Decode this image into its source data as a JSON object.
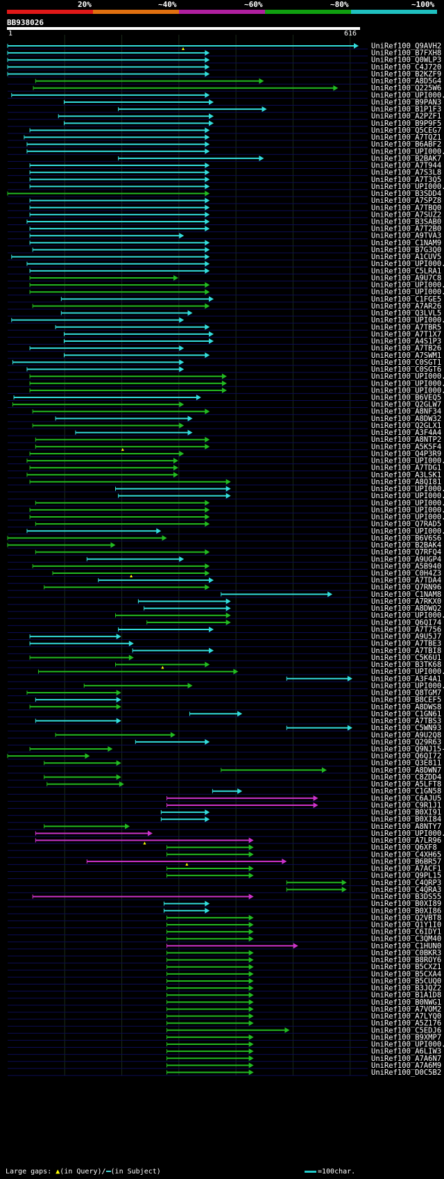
{
  "header": {
    "percent_labels": [
      "20%",
      "~40%",
      "~60%",
      "~80%",
      "~100%"
    ],
    "band_colors": [
      "#e01818",
      "#e07010",
      "#b020a0",
      "#10a010",
      "#20c0c0"
    ]
  },
  "query": {
    "id": "BB938026",
    "start": "1",
    "end": "616",
    "length": 616
  },
  "legend": {
    "large_gaps": "Large gaps:",
    "in_query": "(in Query)/",
    "in_subject": "(in Subject)",
    "scale": "=100char."
  },
  "colors": {
    "cyan": "#33dddd",
    "green": "#22bb22",
    "magenta": "#cc33cc",
    "grid": "#1a2a1a",
    "rowline": "#0c0c55"
  },
  "hits": [
    {
      "name": "UniRef100_Q9AVH2",
      "band": "cyan",
      "start": 1,
      "end": 616,
      "tri": true
    },
    {
      "name": "UniRef100_B7FXH8",
      "band": "cyan",
      "start": 1,
      "end": 355
    },
    {
      "name": "UniRef100_Q0WLP3",
      "band": "cyan",
      "start": 1,
      "end": 355
    },
    {
      "name": "UniRef100_C4J720",
      "band": "cyan",
      "start": 1,
      "end": 355
    },
    {
      "name": "UniRef100_B2KZF9",
      "band": "cyan",
      "start": 1,
      "end": 355
    },
    {
      "name": "UniRef100_A8D5G4",
      "band": "green",
      "start": 50,
      "end": 450
    },
    {
      "name": "UniRef100_Q225W6",
      "band": "green",
      "start": 46,
      "end": 580
    },
    {
      "name": "UniRef100_UPI000...",
      "band": "cyan",
      "start": 8,
      "end": 355
    },
    {
      "name": "UniRef100_B9PAN3",
      "band": "cyan",
      "start": 100,
      "end": 362
    },
    {
      "name": "UniRef100_B1P1F3",
      "band": "cyan",
      "start": 195,
      "end": 455
    },
    {
      "name": "UniRef100_A2PZF1",
      "band": "cyan",
      "start": 90,
      "end": 362
    },
    {
      "name": "UniRef100_B9P9F5",
      "band": "cyan",
      "start": 100,
      "end": 362
    },
    {
      "name": "UniRef100_Q5CEG7",
      "band": "cyan",
      "start": 40,
      "end": 355
    },
    {
      "name": "UniRef100_A7TQZ1",
      "band": "cyan",
      "start": 30,
      "end": 355
    },
    {
      "name": "UniRef100_B6ABF2",
      "band": "cyan",
      "start": 35,
      "end": 355
    },
    {
      "name": "UniRef100_UPI000...",
      "band": "cyan",
      "start": 35,
      "end": 355
    },
    {
      "name": "UniRef100_B2BAK7",
      "band": "cyan",
      "start": 195,
      "end": 450
    },
    {
      "name": "UniRef100_A7T944",
      "band": "cyan",
      "start": 40,
      "end": 355
    },
    {
      "name": "UniRef100_A7S3L8",
      "band": "cyan",
      "start": 40,
      "end": 355
    },
    {
      "name": "UniRef100_A7T3Q5",
      "band": "cyan",
      "start": 40,
      "end": 355
    },
    {
      "name": "UniRef100_UPI000...",
      "band": "cyan",
      "start": 40,
      "end": 355
    },
    {
      "name": "UniRef100_B3SDD4",
      "band": "green",
      "start": 1,
      "end": 355
    },
    {
      "name": "UniRef100_A7SPZ8",
      "band": "cyan",
      "start": 40,
      "end": 355
    },
    {
      "name": "UniRef100_A7TBQ0",
      "band": "cyan",
      "start": 40,
      "end": 355
    },
    {
      "name": "UniRef100_A7SUZ2",
      "band": "cyan",
      "start": 40,
      "end": 355
    },
    {
      "name": "UniRef100_B3SAB0",
      "band": "cyan",
      "start": 35,
      "end": 355
    },
    {
      "name": "UniRef100_A7T2B0",
      "band": "cyan",
      "start": 40,
      "end": 355
    },
    {
      "name": "UniRef100_A9TVA3",
      "band": "cyan",
      "start": 40,
      "end": 310
    },
    {
      "name": "UniRef100_C1NAM9",
      "band": "cyan",
      "start": 40,
      "end": 355
    },
    {
      "name": "UniRef100_B7G3Q0",
      "band": "cyan",
      "start": 45,
      "end": 355
    },
    {
      "name": "UniRef100_A1CUV5",
      "band": "cyan",
      "start": 8,
      "end": 355
    },
    {
      "name": "UniRef100_UPI000...",
      "band": "cyan",
      "start": 35,
      "end": 355
    },
    {
      "name": "UniRef100_C5LRA1",
      "band": "cyan",
      "start": 40,
      "end": 355
    },
    {
      "name": "UniRef100_A9U7C8",
      "band": "green",
      "start": 40,
      "end": 300
    },
    {
      "name": "UniRef100_UPI000...",
      "band": "green",
      "start": 40,
      "end": 355
    },
    {
      "name": "UniRef100_UPI000...",
      "band": "green",
      "start": 40,
      "end": 355
    },
    {
      "name": "UniRef100_C1FGE5",
      "band": "cyan",
      "start": 95,
      "end": 362
    },
    {
      "name": "UniRef100_A7AR26",
      "band": "green",
      "start": 45,
      "end": 355
    },
    {
      "name": "UniRef100_Q3LVL5",
      "band": "cyan",
      "start": 95,
      "end": 325
    },
    {
      "name": "UniRef100_UPI000...",
      "band": "cyan",
      "start": 8,
      "end": 310
    },
    {
      "name": "UniRef100_A7TBR5",
      "band": "cyan",
      "start": 85,
      "end": 355
    },
    {
      "name": "UniRef100_A7T1X7",
      "band": "cyan",
      "start": 100,
      "end": 362
    },
    {
      "name": "UniRef100_A4S1P3",
      "band": "cyan",
      "start": 100,
      "end": 362
    },
    {
      "name": "UniRef100_A7TB26",
      "band": "cyan",
      "start": 40,
      "end": 310
    },
    {
      "name": "UniRef100_A7SWM1",
      "band": "cyan",
      "start": 100,
      "end": 355
    },
    {
      "name": "UniRef100_C0SGT1",
      "band": "cyan",
      "start": 10,
      "end": 310
    },
    {
      "name": "UniRef100_C0SGT6",
      "band": "cyan",
      "start": 35,
      "end": 310
    },
    {
      "name": "UniRef100_UPI000...",
      "band": "green",
      "start": 40,
      "end": 385
    },
    {
      "name": "UniRef100_UPI000...",
      "band": "green",
      "start": 40,
      "end": 385
    },
    {
      "name": "UniRef100_UPI000...",
      "band": "green",
      "start": 40,
      "end": 385
    },
    {
      "name": "UniRef100_B6VEQ5",
      "band": "cyan",
      "start": 12,
      "end": 340
    },
    {
      "name": "UniRef100_Q2GLW7",
      "band": "green",
      "start": 10,
      "end": 310
    },
    {
      "name": "UniRef100_A8NF34",
      "band": "green",
      "start": 45,
      "end": 355
    },
    {
      "name": "UniRef100_A8DW32",
      "band": "cyan",
      "start": 85,
      "end": 325
    },
    {
      "name": "UniRef100_Q2GLX1",
      "band": "green",
      "start": 45,
      "end": 310
    },
    {
      "name": "UniRef100_A3F4A4",
      "band": "cyan",
      "start": 120,
      "end": 325
    },
    {
      "name": "UniRef100_A8NTP2",
      "band": "green",
      "start": 50,
      "end": 355
    },
    {
      "name": "UniRef100_A5K5F4",
      "band": "green",
      "start": 50,
      "end": 355,
      "tri": true
    },
    {
      "name": "UniRef100_Q4P3R9",
      "band": "green",
      "start": 40,
      "end": 310
    },
    {
      "name": "UniRef100_UPI000...",
      "band": "green",
      "start": 35,
      "end": 300
    },
    {
      "name": "UniRef100_A7TDG1",
      "band": "green",
      "start": 40,
      "end": 300
    },
    {
      "name": "UniRef100_A3LSK1",
      "band": "green",
      "start": 35,
      "end": 300
    },
    {
      "name": "UniRef100_A8QI81",
      "band": "green",
      "start": 40,
      "end": 392
    },
    {
      "name": "UniRef100_UPI000...",
      "band": "cyan",
      "start": 190,
      "end": 392
    },
    {
      "name": "UniRef100_UPI000...",
      "band": "cyan",
      "start": 195,
      "end": 392
    },
    {
      "name": "UniRef100_UPI000...",
      "band": "green",
      "start": 50,
      "end": 355
    },
    {
      "name": "UniRef100_UPI000...",
      "band": "green",
      "start": 40,
      "end": 355
    },
    {
      "name": "UniRef100_UPI000...",
      "band": "green",
      "start": 40,
      "end": 355
    },
    {
      "name": "UniRef100_Q7RAD5",
      "band": "green",
      "start": 50,
      "end": 355
    },
    {
      "name": "UniRef100_UPI000...",
      "band": "cyan",
      "start": 35,
      "end": 270
    },
    {
      "name": "UniRef100_B6V6S6",
      "band": "green",
      "start": 1,
      "end": 280
    },
    {
      "name": "UniRef100_B2BAK4",
      "band": "green",
      "start": 1,
      "end": 190
    },
    {
      "name": "UniRef100_Q7RFQ4",
      "band": "green",
      "start": 50,
      "end": 355
    },
    {
      "name": "UniRef100_A9UGP4",
      "band": "cyan",
      "start": 140,
      "end": 310
    },
    {
      "name": "UniRef100_A5B940",
      "band": "green",
      "start": 45,
      "end": 355
    },
    {
      "name": "UniRef100_C0H4Z3",
      "band": "green",
      "start": 80,
      "end": 355,
      "tri": true
    },
    {
      "name": "UniRef100_A7TDA4",
      "band": "cyan",
      "start": 160,
      "end": 362
    },
    {
      "name": "UniRef100_Q7RN96",
      "band": "green",
      "start": 65,
      "end": 355
    },
    {
      "name": "UniRef100_C1NAM8",
      "band": "cyan",
      "start": 375,
      "end": 570
    },
    {
      "name": "UniRef100_A7RKX0",
      "band": "cyan",
      "start": 230,
      "end": 392
    },
    {
      "name": "UniRef100_A8DWQ2",
      "band": "cyan",
      "start": 240,
      "end": 392
    },
    {
      "name": "UniRef100_UPI000...",
      "band": "green",
      "start": 190,
      "end": 392
    },
    {
      "name": "UniRef100_Q6QI74",
      "band": "green",
      "start": 245,
      "end": 392
    },
    {
      "name": "UniRef100_A7T756",
      "band": "cyan",
      "start": 195,
      "end": 362
    },
    {
      "name": "UniRef100_A9U5J7",
      "band": "cyan",
      "start": 40,
      "end": 200
    },
    {
      "name": "UniRef100_A7TBE3",
      "band": "cyan",
      "start": 40,
      "end": 222
    },
    {
      "name": "UniRef100_A7TBI8",
      "band": "cyan",
      "start": 220,
      "end": 362
    },
    {
      "name": "UniRef100_C5K6U1",
      "band": "green",
      "start": 40,
      "end": 222
    },
    {
      "name": "UniRef100_B3TK68",
      "band": "green",
      "start": 190,
      "end": 355,
      "tri": true
    },
    {
      "name": "UniRef100_UPI000...",
      "band": "green",
      "start": 55,
      "end": 405
    },
    {
      "name": "UniRef100_A3F4A1",
      "band": "cyan",
      "start": 490,
      "end": 605
    },
    {
      "name": "UniRef100_UPI000...",
      "band": "green",
      "start": 135,
      "end": 325
    },
    {
      "name": "UniRef100_Q8TGM7",
      "band": "green",
      "start": 35,
      "end": 200
    },
    {
      "name": "UniRef100_B8CEF5",
      "band": "cyan",
      "start": 50,
      "end": 200
    },
    {
      "name": "UniRef100_A8DWS8",
      "band": "green",
      "start": 40,
      "end": 200
    },
    {
      "name": "UniRef100_C1GN61",
      "band": "cyan",
      "start": 320,
      "end": 412
    },
    {
      "name": "UniRef100_A7TBS3",
      "band": "cyan",
      "start": 50,
      "end": 200
    },
    {
      "name": "UniRef100_C5WN93",
      "band": "cyan",
      "start": 490,
      "end": 605
    },
    {
      "name": "UniRef100_A9U2Q8",
      "band": "green",
      "start": 85,
      "end": 295
    },
    {
      "name": "UniRef100_Q29R63",
      "band": "cyan",
      "start": 225,
      "end": 355
    },
    {
      "name": "UniRef100_Q9NJ15-3",
      "band": "green",
      "start": 40,
      "end": 185
    },
    {
      "name": "UniRef100_Q6QI72",
      "band": "green",
      "start": 1,
      "end": 145
    },
    {
      "name": "UniRef100_Q3E811",
      "band": "green",
      "start": 65,
      "end": 200
    },
    {
      "name": "UniRef100_A8DWN7",
      "band": "green",
      "start": 375,
      "end": 560
    },
    {
      "name": "UniRef100_C8ZDD4",
      "band": "green",
      "start": 65,
      "end": 200
    },
    {
      "name": "UniRef100_A5LFT8",
      "band": "green",
      "start": 70,
      "end": 205
    },
    {
      "name": "UniRef100_C1GN58",
      "band": "cyan",
      "start": 360,
      "end": 412
    },
    {
      "name": "UniRef100_C6AJU5",
      "band": "magenta",
      "start": 280,
      "end": 545
    },
    {
      "name": "UniRef100_C9R1J1",
      "band": "magenta",
      "start": 280,
      "end": 545
    },
    {
      "name": "UniRef100_B0XI91",
      "band": "cyan",
      "start": 270,
      "end": 355
    },
    {
      "name": "UniRef100_B0XI84",
      "band": "cyan",
      "start": 270,
      "end": 355
    },
    {
      "name": "UniRef100_A8NTY7",
      "band": "green",
      "start": 65,
      "end": 215
    },
    {
      "name": "UniRef100_UPI000...",
      "band": "magenta",
      "start": 50,
      "end": 255
    },
    {
      "name": "UniRef100_A7LR96",
      "band": "magenta",
      "start": 50,
      "end": 432,
      "tri": true
    },
    {
      "name": "UniRef100_Q6XF8",
      "band": "green",
      "start": 280,
      "end": 432
    },
    {
      "name": "UniRef100_C4XH65",
      "band": "green",
      "start": 280,
      "end": 432
    },
    {
      "name": "UniRef100_B6BR57",
      "band": "magenta",
      "start": 140,
      "end": 490,
      "tri": true
    },
    {
      "name": "UniRef100_A7ACF1",
      "band": "green",
      "start": 280,
      "end": 432
    },
    {
      "name": "UniRef100_Q9PL15",
      "band": "green",
      "start": 280,
      "end": 432
    },
    {
      "name": "UniRef100_C4QRP3",
      "band": "green",
      "start": 490,
      "end": 595
    },
    {
      "name": "UniRef100_C4QRA3",
      "band": "green",
      "start": 490,
      "end": 595
    },
    {
      "name": "UniRef100_B3DS55",
      "band": "magenta",
      "start": 45,
      "end": 432
    },
    {
      "name": "UniRef100_B0XI89",
      "band": "cyan",
      "start": 275,
      "end": 355
    },
    {
      "name": "UniRef100_B0XI86",
      "band": "cyan",
      "start": 275,
      "end": 355
    },
    {
      "name": "UniRef100_Q2VBT8",
      "band": "green",
      "start": 280,
      "end": 432
    },
    {
      "name": "UniRef100_Q1Y1I0",
      "band": "green",
      "start": 280,
      "end": 432
    },
    {
      "name": "UniRef100_C6IDY1",
      "band": "green",
      "start": 280,
      "end": 432
    },
    {
      "name": "UniRef100_C3QM40",
      "band": "green",
      "start": 280,
      "end": 432
    },
    {
      "name": "UniRef100_C1HUN0",
      "band": "magenta",
      "start": 280,
      "end": 510
    },
    {
      "name": "UniRef100_C0BKR3",
      "band": "green",
      "start": 280,
      "end": 432
    },
    {
      "name": "UniRef100_B8ROY6",
      "band": "green",
      "start": 280,
      "end": 432
    },
    {
      "name": "UniRef100_B5CXZ1",
      "band": "green",
      "start": 280,
      "end": 432
    },
    {
      "name": "UniRef100_B5CXA4",
      "band": "green",
      "start": 280,
      "end": 432
    },
    {
      "name": "UniRef100_B5CUQ0",
      "band": "green",
      "start": 280,
      "end": 432
    },
    {
      "name": "UniRef100_B3JQZ2",
      "band": "green",
      "start": 280,
      "end": 432
    },
    {
      "name": "UniRef100_B1A1D8",
      "band": "green",
      "start": 280,
      "end": 432
    },
    {
      "name": "UniRef100_B0NWG1",
      "band": "green",
      "start": 280,
      "end": 432
    },
    {
      "name": "UniRef100_A7VOM2",
      "band": "green",
      "start": 280,
      "end": 432
    },
    {
      "name": "UniRef100_A7LYQ0",
      "band": "green",
      "start": 280,
      "end": 432
    },
    {
      "name": "UniRef100_A5Z176",
      "band": "green",
      "start": 280,
      "end": 432
    },
    {
      "name": "UniRef100_C5EDJ6",
      "band": "green",
      "start": 280,
      "end": 495
    },
    {
      "name": "UniRef100_B9XMP7",
      "band": "green",
      "start": 280,
      "end": 432
    },
    {
      "name": "UniRef100_UPI000...",
      "band": "green",
      "start": 280,
      "end": 432
    },
    {
      "name": "UniRef100_A6LIW3",
      "band": "green",
      "start": 280,
      "end": 432
    },
    {
      "name": "UniRef100_A7A6N7",
      "band": "green",
      "start": 280,
      "end": 432
    },
    {
      "name": "UniRef100_A7A6M9",
      "band": "green",
      "start": 280,
      "end": 432
    },
    {
      "name": "UniRef100_D0C5B2",
      "band": "green",
      "start": 280,
      "end": 432
    }
  ]
}
